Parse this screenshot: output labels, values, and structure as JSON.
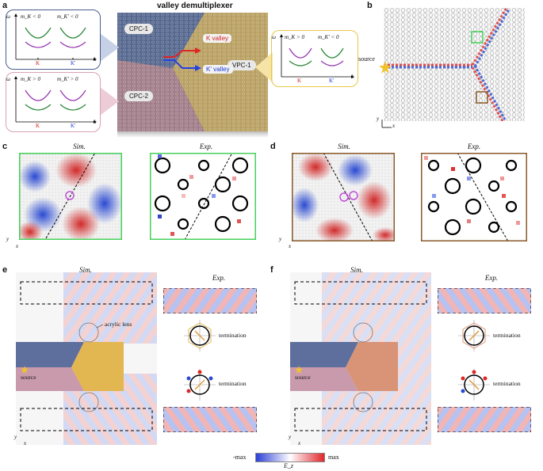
{
  "panels": {
    "a": "a",
    "b": "b",
    "c": "c",
    "d": "d",
    "e": "e",
    "f": "f"
  },
  "a": {
    "title": "valley demultiplexer",
    "cpc1": "CPC-1",
    "cpc2": "CPC-2",
    "vpc1": "VPC-1",
    "k_valley": "K valley",
    "kp_valley": "K' valley",
    "box1": {
      "m1": "m_K < 0",
      "m2": "m_K' < 0",
      "axis_y": "ω",
      "axis_x": "k",
      "tick1": "K",
      "tick2": "K'"
    },
    "box2": {
      "m1": "m_K > 0",
      "m2": "m_K' > 0",
      "axis_y": "ω",
      "axis_x": "k",
      "tick1": "K",
      "tick2": "K'"
    },
    "box3": {
      "m1": "m_K > 0",
      "m2": "m_K' < 0",
      "axis_y": "ω",
      "axis_x": "k",
      "tick1": "K",
      "tick2": "K'"
    }
  },
  "b": {
    "source": "source",
    "axis_y": "y",
    "axis_x": "x"
  },
  "c": {
    "sim": "Sim.",
    "exp": "Exp.",
    "axis_y": "y",
    "axis_x": "x"
  },
  "d": {
    "sim": "Sim.",
    "exp": "Exp.",
    "axis_y": "y",
    "axis_x": "x"
  },
  "e": {
    "sim": "Sim.",
    "exp": "Exp.",
    "lens": "acrylic lens",
    "source": "source",
    "term1": "termination",
    "term2": "termination",
    "axis_y": "y",
    "axis_x": "x"
  },
  "f": {
    "sim": "Sim.",
    "exp": "Exp.",
    "source": "source",
    "term1": "termination",
    "term2": "termination",
    "axis_y": "y",
    "axis_x": "x"
  },
  "colorbar": {
    "min": "-max",
    "max": "max",
    "label": "E_z",
    "colors": [
      "#2b3fd6",
      "#ffffff",
      "#e0262b"
    ]
  },
  "colors": {
    "cpc1": "#4a5d8a",
    "cpc2": "#9a6e7e",
    "vpc1": "#b59a55",
    "green": "#46d05a",
    "brown": "#8a5a2b",
    "magenta": "#c24fd8"
  }
}
